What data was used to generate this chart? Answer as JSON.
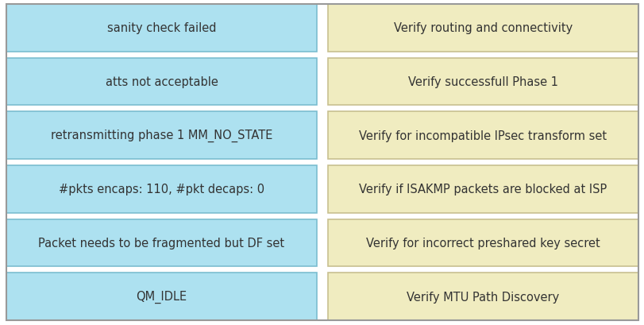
{
  "left_items": [
    "sanity check failed",
    "atts not acceptable",
    "retransmitting phase 1 MM_NO_STATE",
    "#pkts encaps: 110, #pkt decaps: 0",
    "Packet needs to be fragmented but DF set",
    "QM_IDLE"
  ],
  "right_items": [
    "Verify routing and connectivity",
    "Verify successfull Phase 1",
    "Verify for incompatible IPsec transform set",
    "Verify if ISAKMP packets are blocked at ISP",
    "Verify for incorrect preshared key secret",
    "Verify MTU Path Discovery"
  ],
  "left_color": "#ADE1F0",
  "right_color": "#F0ECC0",
  "left_edge_color": "#7BBDD0",
  "right_edge_color": "#C8C090",
  "bg_color": "#FFFFFF",
  "text_color": "#333333",
  "font_size": 10.5,
  "fig_width": 8.12,
  "fig_height": 4.1,
  "outer_border_color": "#999999",
  "gap_color": "#FFFFFF"
}
